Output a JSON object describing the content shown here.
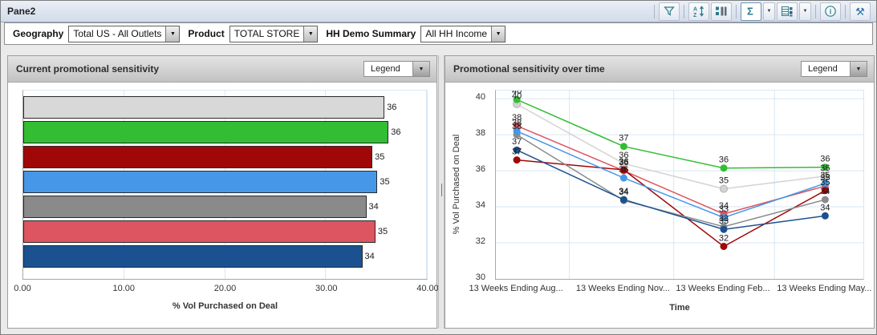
{
  "window": {
    "title": "Pane2"
  },
  "glyphs": {
    "caret_down": "▼",
    "sigma": "Σ",
    "tools": "⚒",
    "info": "i"
  },
  "toolbar": {
    "buttons": [
      {
        "name": "filter",
        "icon": "funnel",
        "sep_before": true
      },
      {
        "name": "sort",
        "icon": "sort",
        "sep_before": true
      },
      {
        "name": "legend-list",
        "icon": "list",
        "sep_before": false
      },
      {
        "name": "summation",
        "icon": "sigma",
        "sep_before": true,
        "caret": true,
        "selected": true
      },
      {
        "name": "view-grid",
        "icon": "grid",
        "sep_before": false,
        "caret": true
      },
      {
        "name": "info",
        "icon": "info",
        "sep_before": true
      },
      {
        "name": "design-tools",
        "icon": "tools",
        "sep_before": true
      }
    ]
  },
  "filters": [
    {
      "label": "Geography",
      "value": "Total US - All Outlets"
    },
    {
      "label": "Product",
      "value": "TOTAL STORE"
    },
    {
      "label": "HH Demo Summary",
      "value": "All HH Income"
    }
  ],
  "left_panel": {
    "title": "Current promotional sensitivity",
    "legend_label": "Legend"
  },
  "right_panel": {
    "title": "Promotional sensitivity over time",
    "legend_label": "Legend"
  },
  "chart_data": [
    {
      "type": "bar",
      "orientation": "horizontal",
      "title": "Current promotional sensitivity",
      "xlabel": "% Vol Purchased on Deal",
      "xlim": [
        0,
        40
      ],
      "xticks": [
        "0.00",
        "10.00",
        "20.00",
        "30.00",
        "40.00"
      ],
      "grid": true,
      "legend_position": "collapsed-dropdown",
      "bars": [
        {
          "color": "#d8d8d8",
          "value": 35.8,
          "label": "36"
        },
        {
          "color": "#33bd33",
          "value": 36.2,
          "label": "36"
        },
        {
          "color": "#a00808",
          "value": 34.6,
          "label": "35"
        },
        {
          "color": "#4697e8",
          "value": 35.1,
          "label": "35"
        },
        {
          "color": "#8a8a8a",
          "value": 34.0,
          "label": "34"
        },
        {
          "color": "#dc5560",
          "value": 34.9,
          "label": "35"
        },
        {
          "color": "#1b5190",
          "value": 33.6,
          "label": "34"
        }
      ]
    },
    {
      "type": "line",
      "title": "Promotional sensitivity over time",
      "xlabel": "Time",
      "ylabel": "% Vol Purchased on Deal",
      "ylim": [
        30,
        40
      ],
      "yticks": [
        30,
        32,
        34,
        36,
        38,
        40
      ],
      "grid": true,
      "legend_position": "collapsed-dropdown",
      "categories": [
        "13 Weeks Ending Aug...",
        "13 Weeks Ending Nov...",
        "13 Weeks Ending Feb...",
        "13 Weeks Ending May..."
      ],
      "series": [
        {
          "name": "silver",
          "color": "#d3d3d3",
          "values": [
            39.7,
            36.4,
            35.0,
            35.7
          ],
          "labels": [
            "40",
            "36",
            "35",
            "36"
          ]
        },
        {
          "name": "green",
          "color": "#33bd33",
          "values": [
            39.95,
            37.35,
            36.15,
            36.2
          ],
          "labels": [
            "40",
            "37",
            "36",
            "36"
          ]
        },
        {
          "name": "dark-red",
          "color": "#a00808",
          "values": [
            36.6,
            36.05,
            31.8,
            34.9
          ],
          "labels": [
            "37",
            "36",
            "32",
            "35"
          ]
        },
        {
          "name": "light-blue",
          "color": "#4697e8",
          "values": [
            38.2,
            35.6,
            33.4,
            35.3
          ],
          "labels": [
            "38",
            "36",
            "33",
            "35"
          ]
        },
        {
          "name": "gray",
          "color": "#8a8a8a",
          "values": [
            38.0,
            34.35,
            32.9,
            34.4
          ],
          "labels": [
            "38",
            "34",
            "33",
            "34"
          ]
        },
        {
          "name": "rose",
          "color": "#dc5560",
          "values": [
            38.5,
            36.0,
            33.6,
            35.15
          ],
          "labels": [
            "38",
            "36",
            "34",
            "35"
          ]
        },
        {
          "name": "navy",
          "color": "#1b5190",
          "values": [
            37.15,
            34.4,
            32.75,
            33.5
          ],
          "labels": [
            "37",
            "34",
            "33",
            "34"
          ]
        }
      ]
    }
  ]
}
